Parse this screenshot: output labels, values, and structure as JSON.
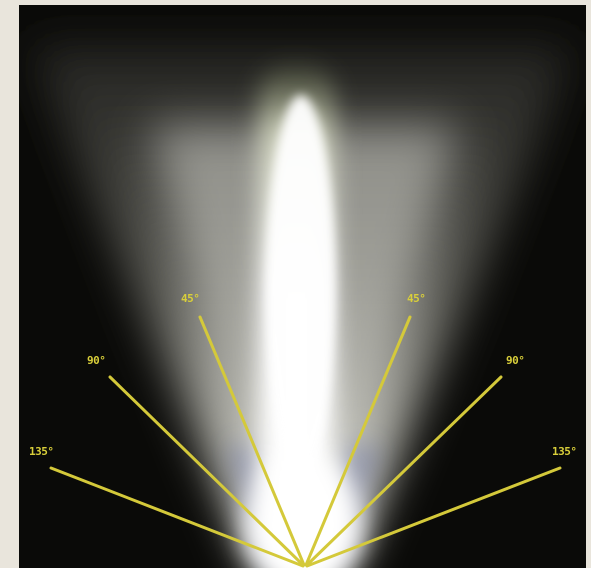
{
  "diagram": {
    "labels": {
      "left_45": "45°",
      "right_45": "45°",
      "left_90": "90°",
      "right_90": "90°",
      "left_135": "135°",
      "right_135": "135°"
    },
    "colors": {
      "background_frame": "#e9e5dc",
      "photo_background": "#0a0a08",
      "beam_core": "#ffffff",
      "beam_mid": "#c8c8c0",
      "beam_tint": "#8a9a70",
      "angle_lines": "#d4c93a",
      "angle_labels": "#d9cf3a",
      "blue_fringe": "#3a4a9a"
    }
  }
}
